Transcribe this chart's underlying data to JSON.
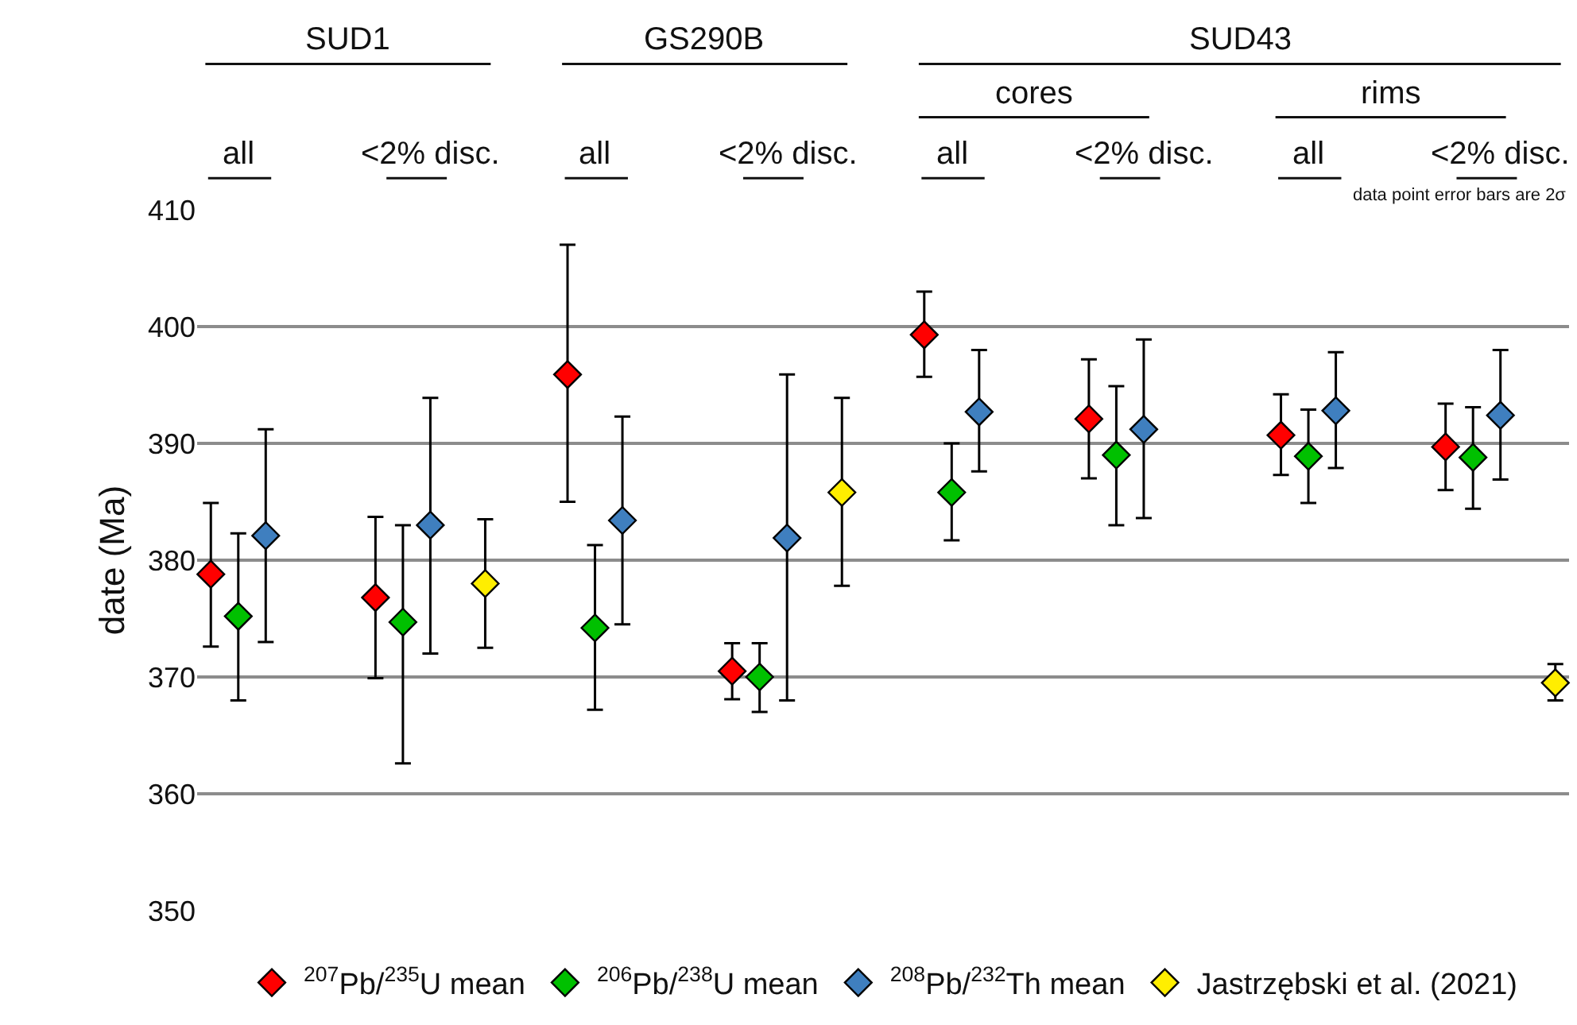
{
  "chart_data": {
    "type": "scatter",
    "ylabel": "date (Ma)",
    "annotations": [
      "SUD1",
      "GS290B",
      "SUD43",
      "cores",
      "rims",
      "all",
      "<2% disc.",
      "all",
      "<2% disc.",
      "all",
      "<2% disc.",
      "all",
      "<2% disc.",
      "data point error bars are 2σ"
    ],
    "categories": [
      null,
      null,
      null,
      null,
      null,
      null,
      null,
      null,
      null,
      null,
      null,
      null,
      null,
      null,
      null,
      null,
      null,
      null,
      null,
      null,
      null,
      null,
      null,
      null,
      null,
      null,
      null,
      null,
      null,
      null,
      null,
      null,
      null,
      null,
      null,
      null,
      null,
      null,
      null,
      null,
      null,
      null,
      null,
      null,
      null,
      null,
      null,
      null,
      null,
      null
    ],
    "ylim": [
      350,
      410
    ],
    "yticks": [
      350,
      360,
      370,
      380,
      390,
      400,
      410
    ],
    "grid": "y",
    "legend": "bottom",
    "marker": "diamond",
    "tick_labels": "y",
    "series": [
      {
        "name": "$^{207}$Pb/$^{235}$U mean",
        "color": "#ff0000",
        "values": [
          378.8,
          null,
          null,
          null,
          null,
          null,
          376.8,
          null,
          null,
          null,
          null,
          null,
          null,
          395.9,
          null,
          null,
          null,
          null,
          null,
          370.5,
          null,
          null,
          null,
          null,
          null,
          null,
          399.3,
          null,
          null,
          null,
          null,
          null,
          392.1,
          null,
          null,
          null,
          null,
          null,
          null,
          390.7,
          null,
          null,
          null,
          null,
          null,
          389.7,
          null,
          null,
          null,
          null
        ],
        "errors": [
          [
            372.6,
            384.9
          ],
          null,
          null,
          null,
          null,
          null,
          [
            369.9,
            383.7
          ],
          null,
          null,
          null,
          null,
          null,
          null,
          [
            385.0,
            407.0
          ],
          null,
          null,
          null,
          null,
          null,
          [
            368.1,
            372.9
          ],
          null,
          null,
          null,
          null,
          null,
          null,
          [
            395.7,
            403.0
          ],
          null,
          null,
          null,
          null,
          null,
          [
            387.0,
            397.2
          ],
          null,
          null,
          null,
          null,
          null,
          null,
          [
            387.3,
            394.2
          ],
          null,
          null,
          null,
          null,
          null,
          [
            386.0,
            393.4
          ],
          null,
          null,
          null,
          null
        ]
      },
      {
        "name": "$^{206}$Pb/$^{238}$U mean",
        "color": "#00c000",
        "values": [
          null,
          375.2,
          null,
          null,
          null,
          null,
          null,
          374.7,
          null,
          null,
          null,
          null,
          null,
          null,
          374.2,
          null,
          null,
          null,
          null,
          null,
          370.0,
          null,
          null,
          null,
          null,
          null,
          null,
          385.8,
          null,
          null,
          null,
          null,
          null,
          389.0,
          null,
          null,
          null,
          null,
          null,
          null,
          388.9,
          null,
          null,
          null,
          null,
          null,
          388.8,
          null,
          null,
          null
        ],
        "errors": [
          null,
          [
            368.0,
            382.3
          ],
          null,
          null,
          null,
          null,
          null,
          [
            362.6,
            383.0
          ],
          null,
          null,
          null,
          null,
          null,
          null,
          [
            367.2,
            381.3
          ],
          null,
          null,
          null,
          null,
          null,
          [
            367.0,
            372.9
          ],
          null,
          null,
          null,
          null,
          null,
          null,
          [
            381.7,
            390.0
          ],
          null,
          null,
          null,
          null,
          null,
          [
            383.0,
            394.9
          ],
          null,
          null,
          null,
          null,
          null,
          null,
          [
            384.9,
            392.9
          ],
          null,
          null,
          null,
          null,
          null,
          [
            384.4,
            393.1
          ],
          null,
          null,
          null
        ]
      },
      {
        "name": "$^{208}$Pb/$^{232}$Th mean",
        "color": "#3f7fbf",
        "values": [
          null,
          null,
          382.1,
          null,
          null,
          null,
          null,
          null,
          383.0,
          null,
          null,
          null,
          null,
          null,
          null,
          383.4,
          null,
          null,
          null,
          null,
          null,
          381.9,
          null,
          null,
          null,
          null,
          null,
          null,
          392.7,
          null,
          null,
          null,
          null,
          null,
          391.2,
          null,
          null,
          null,
          null,
          null,
          null,
          392.8,
          null,
          null,
          null,
          null,
          null,
          392.4,
          null,
          null
        ],
        "errors": [
          null,
          null,
          [
            373.0,
            391.2
          ],
          null,
          null,
          null,
          null,
          null,
          [
            372.0,
            393.9
          ],
          null,
          null,
          null,
          null,
          null,
          null,
          [
            374.5,
            392.3
          ],
          null,
          null,
          null,
          null,
          null,
          [
            368.0,
            395.9
          ],
          null,
          null,
          null,
          null,
          null,
          null,
          [
            387.6,
            398.0
          ],
          null,
          null,
          null,
          null,
          null,
          [
            383.6,
            398.9
          ],
          null,
          null,
          null,
          null,
          null,
          null,
          [
            387.9,
            397.8
          ],
          null,
          null,
          null,
          null,
          null,
          [
            386.9,
            398.0
          ],
          null,
          null
        ]
      },
      {
        "name": "Jastrzębski et al. (2021)",
        "color": "#ffee00",
        "values": [
          null,
          null,
          null,
          null,
          null,
          null,
          null,
          null,
          null,
          null,
          378.0,
          null,
          null,
          null,
          null,
          null,
          null,
          null,
          null,
          null,
          null,
          null,
          null,
          385.8,
          null,
          null,
          null,
          null,
          null,
          null,
          null,
          null,
          null,
          null,
          null,
          null,
          null,
          null,
          null,
          null,
          null,
          null,
          null,
          null,
          null,
          null,
          null,
          null,
          null,
          369.5
        ],
        "errors": [
          null,
          null,
          null,
          null,
          null,
          null,
          null,
          null,
          null,
          null,
          [
            372.5,
            383.5
          ],
          null,
          null,
          null,
          null,
          null,
          null,
          null,
          null,
          null,
          null,
          null,
          null,
          [
            377.8,
            393.9
          ],
          null,
          null,
          null,
          null,
          null,
          null,
          null,
          null,
          null,
          null,
          null,
          null,
          null,
          null,
          null,
          null,
          null,
          null,
          null,
          null,
          null,
          null,
          null,
          null,
          null,
          [
            368.0,
            371.1
          ]
        ]
      }
    ]
  }
}
